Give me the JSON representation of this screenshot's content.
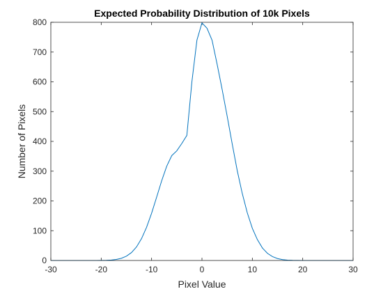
{
  "chart_data": {
    "type": "line",
    "title": "Expected Probability Distribution of 10k Pixels",
    "xlabel": "Pixel Value",
    "ylabel": "Number of Pixels",
    "xlim": [
      -30,
      30
    ],
    "ylim": [
      0,
      800
    ],
    "x_ticks": [
      -30,
      -20,
      -10,
      0,
      10,
      20,
      30
    ],
    "y_ticks": [
      0,
      100,
      200,
      300,
      400,
      500,
      600,
      700,
      800
    ],
    "grid": false,
    "series": [
      {
        "color": "#0072BD",
        "x": [
          -30,
          -29,
          -28,
          -27,
          -26,
          -25,
          -24,
          -23,
          -22,
          -21,
          -20,
          -19,
          -18,
          -17,
          -16,
          -15,
          -14,
          -13,
          -12,
          -11,
          -10,
          -9,
          -8,
          -7,
          -6,
          -5,
          -4,
          -3,
          -2,
          -1,
          0,
          1,
          2,
          3,
          4,
          5,
          6,
          7,
          8,
          9,
          10,
          11,
          12,
          13,
          14,
          15,
          16,
          17,
          18,
          19,
          20,
          21,
          22,
          23,
          24,
          25,
          26,
          27,
          28,
          29,
          30
        ],
        "y": [
          0,
          0,
          0,
          0,
          0,
          0,
          0,
          0,
          0,
          0.1,
          0.3,
          0.6,
          1.5,
          3.5,
          7.4,
          14.4,
          26.4,
          45.3,
          73.3,
          111.3,
          158.7,
          212.6,
          267.6,
          316.6,
          352.1,
          368.3,
          393.0,
          420.0,
          600.0,
          740.0,
          797.9,
          780.0,
          740.0,
          660.0,
          575.0,
          485.0,
          392.0,
          302.0,
          225.0,
          160.0,
          108.0,
          70.0,
          42.0,
          24.0,
          13.0,
          6.5,
          3.0,
          1.3,
          0.5,
          0.2,
          0.1,
          0,
          0,
          0,
          0,
          0,
          0,
          0,
          0,
          0,
          0
        ]
      }
    ]
  }
}
